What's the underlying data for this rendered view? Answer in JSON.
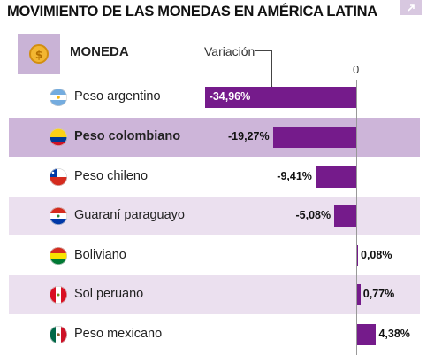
{
  "title": "MOVIMIENTO DE LAS MONEDAS EN AMÉRICA LATINA",
  "header": {
    "currency_label": "MONEDA",
    "variation_label": "Variación",
    "zero_label": "0"
  },
  "icons": {
    "expand": "expand-icon",
    "coin": "dollar-coin-icon"
  },
  "colors": {
    "bar": "#751b8b",
    "row_shade": "#ebe0ef",
    "row_highlight": "#cdb5d9",
    "coin_box": "#c9b3d6"
  },
  "chart_data": {
    "type": "bar",
    "orientation": "horizontal",
    "categories": [
      "Peso argentino",
      "Peso colombiano",
      "Peso chileno",
      "Guaraní paraguayo",
      "Boliviano",
      "Sol peruano",
      "Peso mexicano"
    ],
    "values": [
      -34.96,
      -19.27,
      -9.41,
      -5.08,
      0.08,
      0.77,
      4.38
    ],
    "value_labels": [
      "-34,96%",
      "-19,27%",
      "-9,41%",
      "-5,08%",
      "0,08%",
      "0,77%",
      "4,38%"
    ],
    "flags": [
      "argentina-flag-icon",
      "colombia-flag-icon",
      "chile-flag-icon",
      "paraguay-flag-icon",
      "bolivia-flag-icon",
      "peru-flag-icon",
      "mexico-flag-icon"
    ],
    "highlighted": "Peso colombiano",
    "title": "MOVIMIENTO DE LAS MONEDAS EN AMÉRICA LATINA",
    "xlabel": "Variación",
    "ylabel": "MONEDA",
    "xlim": [
      -35,
      5
    ]
  }
}
